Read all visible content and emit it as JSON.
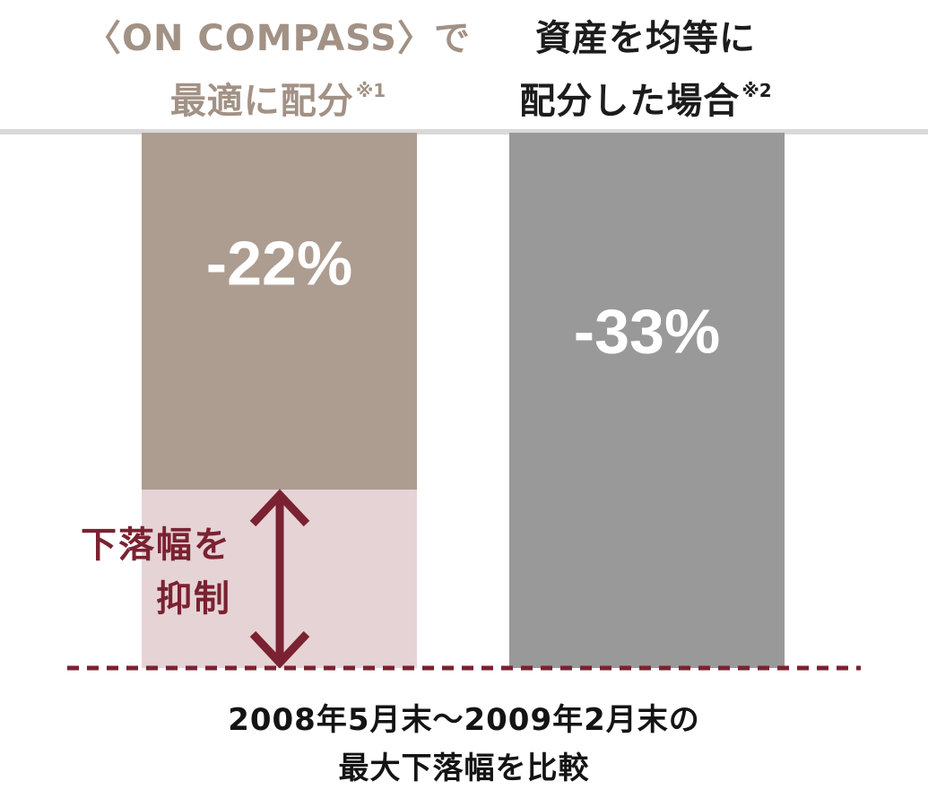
{
  "colors": {
    "header_left_text": "#a29185",
    "header_right_text": "#1c1c1c",
    "bar_left": "#ad9c90",
    "bar_right": "#999999",
    "suppressed_zone": "#e6d3d6",
    "accent": "#7a2231",
    "top_rule": "#d9d9d9",
    "value_label": "#ffffff"
  },
  "header": {
    "left": {
      "line1": "〈ON COMPASS〉で",
      "line2": "最適に配分",
      "note": "※1"
    },
    "right": {
      "line1": "資産を均等に",
      "line2": "配分した場合",
      "note": "※2"
    }
  },
  "annotation": {
    "line1": "下落幅を",
    "line2": "抑制",
    "icon": "double-arrow-vertical-icon"
  },
  "footer": {
    "line1": "2008年5月末～2009年2月末の",
    "line2": "最大下落幅を比較"
  },
  "chart_data": {
    "type": "bar",
    "title": "",
    "xlabel": "",
    "ylabel": "",
    "categories": [
      "〈ON COMPASS〉で最適に配分※1",
      "資産を均等に配分した場合※2"
    ],
    "values": [
      -22,
      -33
    ],
    "value_labels": [
      "-22%",
      "-33%"
    ],
    "ylim": [
      -33,
      0
    ],
    "grid": false,
    "legend": "none",
    "bars_hang_from_top": true,
    "difference_band": {
      "from": -22,
      "to": -33,
      "applies_to": 0
    }
  }
}
